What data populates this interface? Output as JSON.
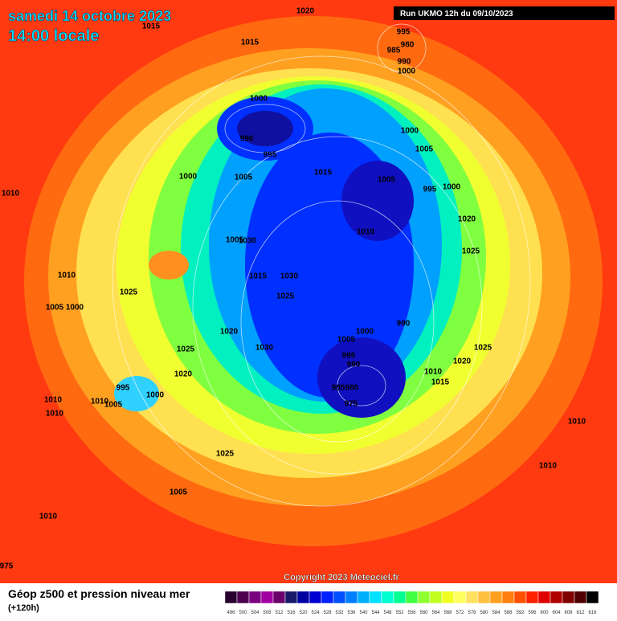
{
  "header": {
    "date": "samedi 14 octobre 2023",
    "time": "14:00 locale",
    "run": "Run UKMO 12h du 09/10/2023"
  },
  "footer": {
    "copyright": "Copyright 2023 Meteociel.fr",
    "title": "Géop z500 et pression niveau mer",
    "lead": "(+120h)"
  },
  "legend": {
    "values": [
      496,
      500,
      504,
      508,
      512,
      516,
      520,
      524,
      528,
      532,
      536,
      540,
      544,
      548,
      552,
      556,
      560,
      564,
      568,
      572,
      576,
      580,
      584,
      588,
      592,
      596,
      600,
      604,
      608,
      612,
      616
    ],
    "colors": [
      "#2a0030",
      "#4b0050",
      "#7a0080",
      "#a000a0",
      "#6a006a",
      "#1a1a6a",
      "#0000a0",
      "#0000d0",
      "#0020ff",
      "#0050ff",
      "#0080ff",
      "#00b0ff",
      "#00e0ff",
      "#00ffd0",
      "#00ff90",
      "#40ff40",
      "#90ff30",
      "#c0ff20",
      "#f0ff20",
      "#ffff60",
      "#ffe060",
      "#ffc040",
      "#ffa020",
      "#ff8010",
      "#ff5000",
      "#ff2000",
      "#e00000",
      "#b00000",
      "#800000",
      "#500000",
      "#000000"
    ]
  },
  "isobars": [
    1020,
    1015,
    1015,
    995,
    980,
    985,
    990,
    1000,
    1000,
    990,
    995,
    1000,
    1005,
    1000,
    1005,
    1015,
    1005,
    995,
    1000,
    1010,
    1020,
    1010,
    1005,
    1030,
    1025,
    1015,
    1030,
    1010,
    1025,
    1025,
    1005,
    1000,
    990,
    1020,
    1005,
    1000,
    1030,
    1025,
    1025,
    995,
    990,
    1020,
    1010,
    1020,
    1015,
    995,
    985,
    980,
    1000,
    1010,
    1010,
    1005,
    975,
    1010,
    1010,
    1025,
    1010,
    1005,
    1010,
    975
  ]
}
